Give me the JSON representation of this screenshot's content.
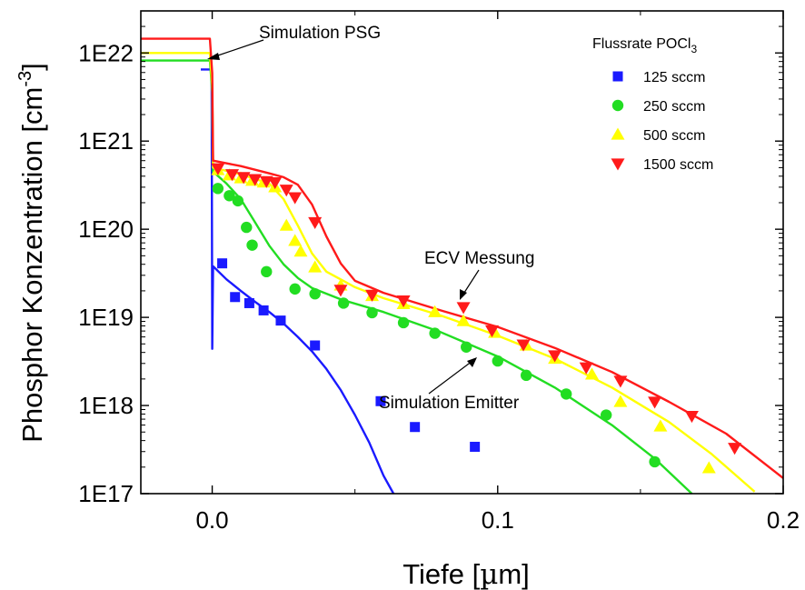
{
  "chart_data": {
    "type": "scatter",
    "xlabel_pre": "Tiefe [",
    "xlabel_mu": "µ",
    "xlabel_post": "m]",
    "ylabel_main": "Phosphor Konzentration [cm",
    "ylabel_sup": "-3",
    "ylabel_end": "]",
    "xlim": [
      -0.025,
      0.2
    ],
    "ylim": [
      1e+17,
      3e+22
    ],
    "yscale": "log",
    "x_ticks": [
      {
        "v": 0.0,
        "label": "0.0"
      },
      {
        "v": 0.1,
        "label": "0.1"
      },
      {
        "v": 0.2,
        "label": "0.2"
      }
    ],
    "y_ticks": [
      {
        "v": 1e+17,
        "label": "1E17"
      },
      {
        "v": 1e+18,
        "label": "1E18"
      },
      {
        "v": 1e+19,
        "label": "1E19"
      },
      {
        "v": 1e+20,
        "label": "1E20"
      },
      {
        "v": 1e+21,
        "label": "1E21"
      },
      {
        "v": 1e+22,
        "label": "1E22"
      }
    ],
    "legend": {
      "title_main": "Flussrate POCl",
      "title_sub": "3",
      "position": "top-right"
    },
    "annotations": {
      "psg": "Simulation PSG",
      "ecv": "ECV Messung",
      "emitter": "Simulation Emitter"
    },
    "series": [
      {
        "name": "125 sccm",
        "color": "#1a1aff",
        "marker": "square",
        "points": [
          [
            0.0035,
            4.1e+19
          ],
          [
            0.008,
            1.7e+19
          ],
          [
            0.013,
            1.45e+19
          ],
          [
            0.018,
            1.2e+19
          ],
          [
            0.024,
            9.2e+18
          ],
          [
            0.036,
            4.8e+18
          ],
          [
            0.059,
            1.12e+18
          ],
          [
            0.071,
            5.7e+17
          ],
          [
            0.092,
            3.4e+17
          ]
        ],
        "curve": [
          [
            -0.004,
            6.5e+21
          ],
          [
            -0.0002,
            6.5e+21
          ],
          [
            0.0,
            4.4e+18
          ],
          [
            0.0003,
            3.8e+19
          ],
          [
            0.005,
            2.7e+19
          ],
          [
            0.01,
            2e+19
          ],
          [
            0.015,
            1.5e+19
          ],
          [
            0.02,
            1.15e+19
          ],
          [
            0.025,
            8.5e+18
          ],
          [
            0.03,
            6e+18
          ],
          [
            0.035,
            4.1e+18
          ],
          [
            0.04,
            2.6e+18
          ],
          [
            0.045,
            1.5e+18
          ],
          [
            0.05,
            7.8e+17
          ],
          [
            0.055,
            3.8e+17
          ],
          [
            0.06,
            1.6e+17
          ],
          [
            0.0635,
            1e+17
          ]
        ]
      },
      {
        "name": "250 sccm",
        "color": "#22dd22",
        "marker": "circle",
        "points": [
          [
            0.002,
            2.9e+20
          ],
          [
            0.006,
            2.4e+20
          ],
          [
            0.009,
            2.1e+20
          ],
          [
            0.012,
            1.05e+20
          ],
          [
            0.014,
            6.6e+19
          ],
          [
            0.019,
            3.3e+19
          ],
          [
            0.029,
            2.1e+19
          ],
          [
            0.036,
            1.85e+19
          ],
          [
            0.046,
            1.45e+19
          ],
          [
            0.056,
            1.13e+19
          ],
          [
            0.067,
            8.7e+18
          ],
          [
            0.078,
            6.6e+18
          ],
          [
            0.089,
            4.6e+18
          ],
          [
            0.1,
            3.2e+18
          ],
          [
            0.11,
            2.2e+18
          ],
          [
            0.124,
            1.35e+18
          ],
          [
            0.138,
            7.8e+17
          ],
          [
            0.155,
            2.3e+17
          ]
        ],
        "curve": [
          [
            -0.025,
            8.2e+21
          ],
          [
            -0.0008,
            8.2e+21
          ],
          [
            0.0,
            3.6e+21
          ],
          [
            0.0003,
            4.5e+20
          ],
          [
            0.005,
            3.3e+20
          ],
          [
            0.01,
            2.2e+20
          ],
          [
            0.015,
            1.2e+20
          ],
          [
            0.02,
            6.5e+19
          ],
          [
            0.025,
            4e+19
          ],
          [
            0.03,
            2.8e+19
          ],
          [
            0.035,
            2.15e+19
          ],
          [
            0.045,
            1.6e+19
          ],
          [
            0.06,
            1.15e+19
          ],
          [
            0.08,
            6.8e+18
          ],
          [
            0.1,
            3.6e+18
          ],
          [
            0.12,
            1.6e+18
          ],
          [
            0.14,
            6e+17
          ],
          [
            0.155,
            2.5e+17
          ],
          [
            0.168,
            1e+17
          ]
        ]
      },
      {
        "name": "500 sccm",
        "color": "#ffff00",
        "marker": "triangle-up",
        "points": [
          [
            0.002,
            4.7e+20
          ],
          [
            0.006,
            4.1e+20
          ],
          [
            0.01,
            3.8e+20
          ],
          [
            0.014,
            3.55e+20
          ],
          [
            0.018,
            3.4e+20
          ],
          [
            0.022,
            3e+20
          ],
          [
            0.026,
            1.1e+20
          ],
          [
            0.029,
            7.4e+19
          ],
          [
            0.031,
            5.6e+19
          ],
          [
            0.036,
            3.7e+19
          ],
          [
            0.045,
            2.3e+19
          ],
          [
            0.056,
            1.75e+19
          ],
          [
            0.067,
            1.42e+19
          ],
          [
            0.078,
            1.15e+19
          ],
          [
            0.088,
            9.1e+18
          ],
          [
            0.099,
            6.7e+18
          ],
          [
            0.11,
            4.8e+18
          ],
          [
            0.12,
            3.4e+18
          ],
          [
            0.133,
            2.25e+18
          ],
          [
            0.143,
            1.1e+18
          ],
          [
            0.157,
            5.8e+17
          ],
          [
            0.174,
            1.95e+17
          ]
        ],
        "curve": [
          [
            -0.025,
            1e+22
          ],
          [
            -0.0008,
            1e+22
          ],
          [
            0.0,
            4.3e+21
          ],
          [
            0.0003,
            5e+20
          ],
          [
            0.01,
            4.2e+20
          ],
          [
            0.02,
            3.3e+20
          ],
          [
            0.025,
            2.2e+20
          ],
          [
            0.03,
            1.1e+20
          ],
          [
            0.035,
            5.3e+19
          ],
          [
            0.04,
            3.3e+19
          ],
          [
            0.05,
            2.2e+19
          ],
          [
            0.06,
            1.65e+19
          ],
          [
            0.08,
            1.05e+19
          ],
          [
            0.1,
            6.2e+18
          ],
          [
            0.12,
            3.4e+18
          ],
          [
            0.14,
            1.6e+18
          ],
          [
            0.16,
            6.5e+17
          ],
          [
            0.175,
            2.8e+17
          ],
          [
            0.19,
            1.05e+17
          ]
        ]
      },
      {
        "name": "1500 sccm",
        "color": "#ff1a1a",
        "marker": "triangle-down",
        "points": [
          [
            0.002,
            4.9e+20
          ],
          [
            0.007,
            4.2e+20
          ],
          [
            0.011,
            3.9e+20
          ],
          [
            0.015,
            3.7e+20
          ],
          [
            0.019,
            3.5e+20
          ],
          [
            0.022,
            3.4e+20
          ],
          [
            0.026,
            2.8e+20
          ],
          [
            0.029,
            2.3e+20
          ],
          [
            0.036,
            1.2e+20
          ],
          [
            0.045,
            2.05e+19
          ],
          [
            0.056,
            1.8e+19
          ],
          [
            0.067,
            1.55e+19
          ],
          [
            0.088,
            1.3e+19
          ],
          [
            0.098,
            7.1e+18
          ],
          [
            0.109,
            4.9e+18
          ],
          [
            0.12,
            3.7e+18
          ],
          [
            0.131,
            2.7e+18
          ],
          [
            0.143,
            1.9e+18
          ],
          [
            0.155,
            1.1e+18
          ],
          [
            0.168,
            7.6e+17
          ],
          [
            0.183,
            3.3e+17
          ]
        ],
        "curve": [
          [
            -0.025,
            1.45e+22
          ],
          [
            -0.0008,
            1.45e+22
          ],
          [
            0.0,
            5.9e+21
          ],
          [
            0.0003,
            6e+20
          ],
          [
            0.01,
            5.2e+20
          ],
          [
            0.02,
            4.3e+20
          ],
          [
            0.025,
            3.9e+20
          ],
          [
            0.03,
            3.2e+20
          ],
          [
            0.035,
            1.9e+20
          ],
          [
            0.04,
            8.3e+19
          ],
          [
            0.045,
            4.1e+19
          ],
          [
            0.05,
            2.6e+19
          ],
          [
            0.06,
            1.9e+19
          ],
          [
            0.08,
            1.2e+19
          ],
          [
            0.1,
            7.8e+18
          ],
          [
            0.12,
            4.5e+18
          ],
          [
            0.14,
            2.4e+18
          ],
          [
            0.16,
            1.1e+18
          ],
          [
            0.18,
            4.8e+17
          ],
          [
            0.2,
            1.5e+17
          ]
        ]
      }
    ]
  }
}
